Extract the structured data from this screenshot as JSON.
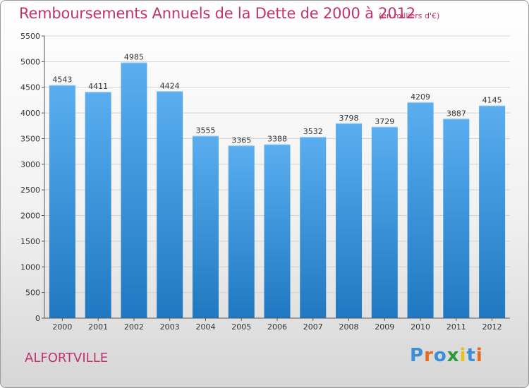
{
  "title": "Remboursements Annuels de la Dette de 2000 à 2012",
  "subtitle": "(en milliers d'€)",
  "city": "ALFORTVILLE",
  "logo": {
    "text": "Proxiti",
    "letter_colors": [
      "#3a8fd6",
      "#e86a1f",
      "#3a8fd6",
      "#2a9a3a",
      "#e8c21f",
      "#3a8fd6",
      "#e86a1f"
    ]
  },
  "colors": {
    "bar_top": "#5aaef0",
    "bar_bottom": "#1f78c1",
    "accent": "#c0336e",
    "grid": "#d4d4d4"
  },
  "chart_data": {
    "type": "bar",
    "categories": [
      "2000",
      "2001",
      "2002",
      "2003",
      "2004",
      "2005",
      "2006",
      "2007",
      "2008",
      "2009",
      "2010",
      "2011",
      "2012"
    ],
    "values": [
      4543,
      4411,
      4985,
      4424,
      3555,
      3365,
      3388,
      3532,
      3798,
      3729,
      4209,
      3887,
      4145
    ],
    "title": "Remboursements Annuels de la Dette de 2000 à 2012",
    "ylim": [
      0,
      5500
    ],
    "yticks": [
      0,
      500,
      1000,
      1500,
      2000,
      2500,
      3000,
      3500,
      4000,
      4500,
      5000,
      5500
    ],
    "grid": true,
    "legend": "none"
  }
}
